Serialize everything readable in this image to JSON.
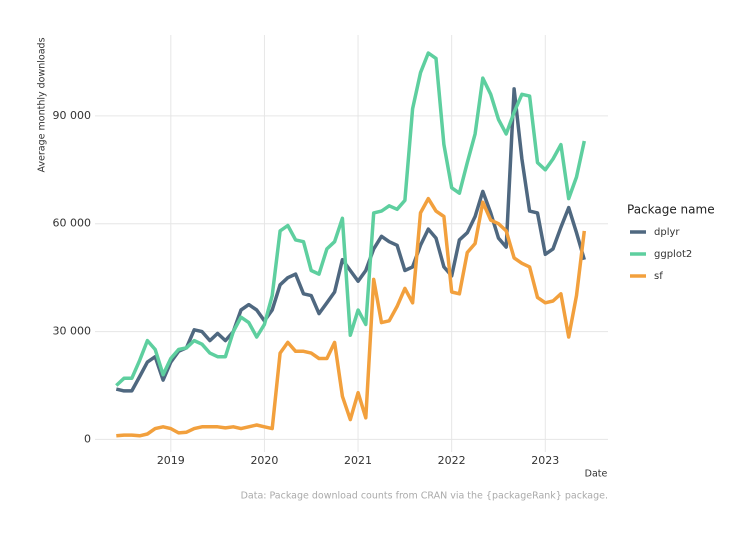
{
  "chart_data": {
    "type": "line",
    "y_label": "Average monthly downloads",
    "x_label": "Date",
    "caption": "Data: Package download counts from CRAN via the {packageRank} package.",
    "legend_title": "Package name",
    "legend": "right",
    "grid": true,
    "xlim": [
      2018.19,
      2023.67
    ],
    "xticks": [
      2019,
      2020,
      2021,
      2022,
      2023
    ],
    "ylim": [
      -3500,
      112500
    ],
    "yticks": [
      0,
      {
        "value": 30000,
        "label": "30 000"
      },
      {
        "value": 60000,
        "label": "60 000"
      },
      {
        "value": 90000,
        "label": "90 000"
      }
    ],
    "x": [
      2018.417,
      2018.5,
      2018.583,
      2018.667,
      2018.75,
      2018.833,
      2018.917,
      2019,
      2019.083,
      2019.167,
      2019.25,
      2019.333,
      2019.417,
      2019.5,
      2019.583,
      2019.667,
      2019.75,
      2019.833,
      2019.917,
      2020,
      2020.083,
      2020.167,
      2020.25,
      2020.333,
      2020.417,
      2020.5,
      2020.583,
      2020.667,
      2020.75,
      2020.833,
      2020.917,
      2021,
      2021.083,
      2021.167,
      2021.25,
      2021.333,
      2021.417,
      2021.5,
      2021.583,
      2021.667,
      2021.75,
      2021.833,
      2021.917,
      2022,
      2022.083,
      2022.167,
      2022.25,
      2022.333,
      2022.417,
      2022.5,
      2022.583,
      2022.667,
      2022.75,
      2022.833,
      2022.917,
      2023,
      2023.083,
      2023.167,
      2023.25,
      2023.333,
      2023.417
    ],
    "series": [
      {
        "name": "dplyr",
        "color": "#4f6880",
        "values": [
          14000,
          13500,
          13500,
          17500,
          21500,
          23000,
          16500,
          21500,
          24500,
          25500,
          30500,
          30000,
          27500,
          29500,
          27500,
          30000,
          36000,
          37500,
          36000,
          33000,
          36000,
          43000,
          45000,
          46000,
          40500,
          40000,
          35000,
          38000,
          41000,
          50000,
          47000,
          44000,
          47000,
          53000,
          56500,
          55000,
          54000,
          47000,
          48000,
          54000,
          58500,
          56000,
          48000,
          45500,
          55500,
          57500,
          62000,
          69000,
          63000,
          56000,
          53500,
          97500,
          78000,
          63500,
          63000,
          51500,
          53000,
          59000,
          64500,
          57500,
          50000
        ]
      },
      {
        "name": "ggplot2",
        "color": "#5ecf9f",
        "values": [
          15000,
          17000,
          17000,
          22000,
          27500,
          25000,
          18000,
          22500,
          25000,
          25500,
          27500,
          26500,
          24000,
          23000,
          23000,
          30000,
          34000,
          32500,
          28500,
          32000,
          40000,
          58000,
          59500,
          55500,
          55000,
          47000,
          46000,
          53000,
          55000,
          61500,
          29000,
          36000,
          32000,
          63000,
          63500,
          65000,
          64000,
          66500,
          92000,
          102000,
          107500,
          106000,
          82000,
          70000,
          68500,
          77000,
          85000,
          100500,
          96000,
          89000,
          85000,
          91000,
          96000,
          95500,
          77000,
          75000,
          78000,
          82000,
          67000,
          73000,
          83000
        ]
      },
      {
        "name": "sf",
        "color": "#f2a03d",
        "values": [
          1000,
          1200,
          1200,
          1000,
          1500,
          3000,
          3500,
          3000,
          1800,
          2000,
          3000,
          3500,
          3500,
          3500,
          3200,
          3500,
          3000,
          3500,
          4000,
          3500,
          3000,
          24000,
          27000,
          24500,
          24500,
          24000,
          22500,
          22500,
          27000,
          12000,
          5500,
          13000,
          6000,
          44500,
          32500,
          33000,
          37000,
          42000,
          38000,
          63000,
          67000,
          63500,
          62000,
          41000,
          40500,
          52000,
          54500,
          66000,
          61000,
          60000,
          58000,
          50500,
          49000,
          48000,
          39500,
          38000,
          38500,
          40500,
          28500,
          40000,
          58000
        ]
      }
    ]
  }
}
